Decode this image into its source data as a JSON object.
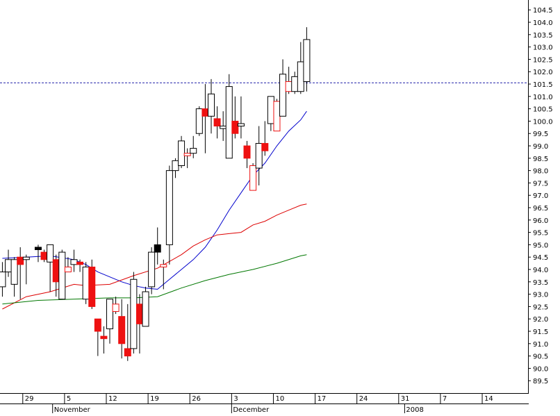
{
  "chart_data": {
    "type": "candlestick",
    "title": "",
    "xlabel": "",
    "ylabel": "",
    "ylim": [
      89.0,
      104.9
    ],
    "y_ticks": [
      89.5,
      90.0,
      90.5,
      91.0,
      91.5,
      92.0,
      92.5,
      93.0,
      93.5,
      94.0,
      94.5,
      95.0,
      95.5,
      96.0,
      96.5,
      97.0,
      97.5,
      98.0,
      98.5,
      99.0,
      99.5,
      100.0,
      100.5,
      101.0,
      101.5,
      102.0,
      102.5,
      103.0,
      103.5,
      104.0,
      104.5
    ],
    "y_tick_labels": [
      "89.5",
      "90.0",
      "90.5",
      "91.0",
      "91.5",
      "92.0",
      "92.5",
      "93.0",
      "93.5",
      "94.0",
      "94.5",
      "95.0",
      "95.5",
      "96.0",
      "96.5",
      "97.0",
      "97.5",
      "98.0",
      "98.5",
      "99.0",
      "99.5",
      "100.0",
      "100.5",
      "101.0",
      "101.5",
      "102.0",
      "102.5",
      "103.0",
      "103.5",
      "104.0",
      "104.5"
    ],
    "grid": false,
    "x_ticks": [
      {
        "label": "29",
        "day": 2
      },
      {
        "label": "5",
        "day": 9
      },
      {
        "label": "12",
        "day": 16
      },
      {
        "label": "19",
        "day": 23
      },
      {
        "label": "26",
        "day": 30
      },
      {
        "label": "3",
        "day": 37
      },
      {
        "label": "10",
        "day": 44
      },
      {
        "label": "17",
        "day": 51
      },
      {
        "label": "24",
        "day": 58
      },
      {
        "label": "31",
        "day": 65
      },
      {
        "label": "7",
        "day": 72
      },
      {
        "label": "14",
        "day": 79
      }
    ],
    "month_labels": [
      {
        "label": "November",
        "day": 7
      },
      {
        "label": "December",
        "day": 37
      },
      {
        "label": "2008",
        "day": 66
      }
    ],
    "x_range": [
      -2.4,
      86.1
    ],
    "reference_line": {
      "value": 101.55,
      "style": "dashed",
      "color": "#1f1fa8"
    },
    "candles": [
      {
        "day": -2,
        "open": 93.3,
        "high": 94.3,
        "low": 92.9,
        "close": 93.9,
        "color": "white"
      },
      {
        "day": -1,
        "open": 93.9,
        "high": 94.8,
        "low": 93.7,
        "close": 94.4,
        "color": "white"
      },
      {
        "day": 0,
        "open": 93.4,
        "high": 94.5,
        "low": 92.9,
        "close": 94.4,
        "color": "white"
      },
      {
        "day": 1,
        "open": 94.5,
        "high": 94.9,
        "low": 92.8,
        "close": 94.2,
        "color": "red"
      },
      {
        "day": 2,
        "open": 94.4,
        "high": 94.6,
        "low": 93.4,
        "close": 94.5,
        "color": "white"
      },
      {
        "day": 4,
        "open": 94.9,
        "high": 95.0,
        "low": 94.3,
        "close": 94.8,
        "color": "black"
      },
      {
        "day": 5,
        "open": 94.7,
        "high": 94.8,
        "low": 94.3,
        "close": 94.4,
        "color": "red"
      },
      {
        "day": 6,
        "open": 94.3,
        "high": 95.0,
        "low": 93.1,
        "close": 95.0,
        "color": "white"
      },
      {
        "day": 7,
        "open": 94.4,
        "high": 94.6,
        "low": 92.9,
        "close": 93.5,
        "color": "red"
      },
      {
        "day": 8,
        "open": 92.8,
        "high": 94.8,
        "low": 92.8,
        "close": 94.7,
        "color": "white"
      },
      {
        "day": 9,
        "open": 94.1,
        "high": 94.5,
        "low": 94.0,
        "close": 93.9,
        "color": "hollow-red"
      },
      {
        "day": 10,
        "open": 94.2,
        "high": 94.8,
        "low": 93.9,
        "close": 94.4,
        "color": "white"
      },
      {
        "day": 11,
        "open": 94.2,
        "high": 94.4,
        "low": 93.9,
        "close": 94.3,
        "color": "red"
      },
      {
        "day": 12,
        "open": 92.8,
        "high": 94.3,
        "low": 92.6,
        "close": 94.1,
        "color": "white"
      },
      {
        "day": 13,
        "open": 94.1,
        "high": 94.4,
        "low": 92.4,
        "close": 92.5,
        "color": "red"
      },
      {
        "day": 14,
        "open": 92.0,
        "high": 92.0,
        "low": 90.5,
        "close": 91.5,
        "color": "red"
      },
      {
        "day": 15,
        "open": 91.3,
        "high": 91.7,
        "low": 90.6,
        "close": 91.2,
        "color": "red"
      },
      {
        "day": 16,
        "open": 91.6,
        "high": 92.8,
        "low": 91.0,
        "close": 92.8,
        "color": "white"
      },
      {
        "day": 17,
        "open": 92.6,
        "high": 92.9,
        "low": 92.2,
        "close": 92.3,
        "color": "hollow-red"
      },
      {
        "day": 18,
        "open": 92.1,
        "high": 92.8,
        "low": 90.4,
        "close": 91.0,
        "color": "red"
      },
      {
        "day": 19,
        "open": 90.8,
        "high": 92.6,
        "low": 90.3,
        "close": 90.5,
        "color": "red"
      },
      {
        "day": 20,
        "open": 90.8,
        "high": 93.9,
        "low": 90.6,
        "close": 93.6,
        "color": "white"
      },
      {
        "day": 21,
        "open": 92.6,
        "high": 93.0,
        "low": 90.6,
        "close": 91.8,
        "color": "red"
      },
      {
        "day": 22,
        "open": 91.7,
        "high": 93.3,
        "low": 91.7,
        "close": 93.1,
        "color": "white"
      },
      {
        "day": 23,
        "open": 93.3,
        "high": 94.9,
        "low": 93.0,
        "close": 94.7,
        "color": "white"
      },
      {
        "day": 24,
        "open": 95.0,
        "high": 95.7,
        "low": 94.2,
        "close": 94.7,
        "color": "black"
      },
      {
        "day": 25,
        "open": 94.2,
        "high": 94.4,
        "low": 93.2,
        "close": 94.1,
        "color": "hollow-red"
      },
      {
        "day": 26,
        "open": 95.0,
        "high": 98.2,
        "low": 94.2,
        "close": 98.0,
        "color": "white"
      },
      {
        "day": 27,
        "open": 98.0,
        "high": 98.5,
        "low": 97.7,
        "close": 98.4,
        "color": "white"
      },
      {
        "day": 28,
        "open": 98.2,
        "high": 99.4,
        "low": 98.1,
        "close": 99.2,
        "color": "white"
      },
      {
        "day": 29,
        "open": 98.7,
        "high": 98.9,
        "low": 98.1,
        "close": 98.6,
        "color": "hollow-red"
      },
      {
        "day": 30,
        "open": 98.7,
        "high": 99.4,
        "low": 98.5,
        "close": 98.9,
        "color": "white"
      },
      {
        "day": 31,
        "open": 99.5,
        "high": 100.6,
        "low": 99.4,
        "close": 100.5,
        "color": "white"
      },
      {
        "day": 32,
        "open": 100.5,
        "high": 101.5,
        "low": 98.7,
        "close": 100.2,
        "color": "red"
      },
      {
        "day": 33,
        "open": 100.2,
        "high": 101.7,
        "low": 99.5,
        "close": 101.1,
        "color": "white"
      },
      {
        "day": 34,
        "open": 100.1,
        "high": 100.6,
        "low": 99.3,
        "close": 99.8,
        "color": "red"
      },
      {
        "day": 35,
        "open": 99.8,
        "high": 100.4,
        "low": 99.2,
        "close": 99.7,
        "color": "white"
      },
      {
        "day": 36,
        "open": 98.5,
        "high": 101.9,
        "low": 98.5,
        "close": 101.4,
        "color": "white"
      },
      {
        "day": 37,
        "open": 100.0,
        "high": 101.0,
        "low": 99.3,
        "close": 99.5,
        "color": "red"
      },
      {
        "day": 38,
        "open": 99.8,
        "high": 101.0,
        "low": 99.3,
        "close": 99.9,
        "color": "white"
      },
      {
        "day": 39,
        "open": 99.0,
        "high": 99.2,
        "low": 98.1,
        "close": 98.5,
        "color": "red"
      },
      {
        "day": 40,
        "open": 98.2,
        "high": 98.3,
        "low": 97.2,
        "close": 97.2,
        "color": "hollow-red"
      },
      {
        "day": 41,
        "open": 98.1,
        "high": 99.8,
        "low": 97.4,
        "close": 99.1,
        "color": "white"
      },
      {
        "day": 42,
        "open": 99.1,
        "high": 100.0,
        "low": 98.6,
        "close": 98.8,
        "color": "red"
      },
      {
        "day": 43,
        "open": 99.9,
        "high": 101.0,
        "low": 99.6,
        "close": 101.0,
        "color": "white"
      },
      {
        "day": 44,
        "open": 100.8,
        "high": 100.9,
        "low": 99.6,
        "close": 99.6,
        "color": "hollow-red"
      },
      {
        "day": 45,
        "open": 100.2,
        "high": 102.5,
        "low": 100.2,
        "close": 101.9,
        "color": "white"
      },
      {
        "day": 46,
        "open": 101.2,
        "high": 102.2,
        "low": 101.1,
        "close": 101.6,
        "color": "hollow-red"
      },
      {
        "day": 47,
        "open": 101.2,
        "high": 102.0,
        "low": 101.1,
        "close": 101.8,
        "color": "white"
      },
      {
        "day": 48,
        "open": 101.2,
        "high": 103.2,
        "low": 101.1,
        "close": 102.4,
        "color": "white"
      },
      {
        "day": 49,
        "open": 101.6,
        "high": 103.8,
        "low": 101.2,
        "close": 103.3,
        "color": "white"
      }
    ],
    "series": [
      {
        "color": "#0000cc",
        "points": [
          [
            -2,
            94.45
          ],
          [
            2,
            94.5
          ],
          [
            6,
            94.55
          ],
          [
            10,
            94.4
          ],
          [
            12,
            94.2
          ],
          [
            14,
            93.9
          ],
          [
            16,
            93.7
          ],
          [
            18,
            93.5
          ],
          [
            20,
            93.35
          ],
          [
            22,
            93.25
          ],
          [
            24,
            93.2
          ],
          [
            26,
            93.6
          ],
          [
            28,
            94.0
          ],
          [
            30,
            94.4
          ],
          [
            32,
            94.9
          ],
          [
            34,
            95.6
          ],
          [
            36,
            96.4
          ],
          [
            38,
            97.1
          ],
          [
            40,
            97.8
          ],
          [
            42,
            98.3
          ],
          [
            44,
            99.0
          ],
          [
            46,
            99.6
          ],
          [
            48,
            100.05
          ],
          [
            49,
            100.4
          ]
        ]
      },
      {
        "color": "#dd0000",
        "points": [
          [
            -2,
            92.4
          ],
          [
            2,
            92.9
          ],
          [
            6,
            93.1
          ],
          [
            10,
            93.4
          ],
          [
            12,
            93.35
          ],
          [
            16,
            93.4
          ],
          [
            20,
            93.75
          ],
          [
            24,
            94.05
          ],
          [
            28,
            94.6
          ],
          [
            30,
            94.95
          ],
          [
            32,
            95.2
          ],
          [
            34,
            95.4
          ],
          [
            36,
            95.45
          ],
          [
            38,
            95.5
          ],
          [
            40,
            95.8
          ],
          [
            42,
            95.95
          ],
          [
            44,
            96.2
          ],
          [
            46,
            96.4
          ],
          [
            48,
            96.6
          ],
          [
            49,
            96.65
          ]
        ]
      },
      {
        "color": "#007700",
        "points": [
          [
            -2,
            92.6
          ],
          [
            4,
            92.75
          ],
          [
            10,
            92.8
          ],
          [
            16,
            92.85
          ],
          [
            20,
            92.85
          ],
          [
            24,
            92.9
          ],
          [
            28,
            93.25
          ],
          [
            32,
            93.55
          ],
          [
            36,
            93.8
          ],
          [
            40,
            94.0
          ],
          [
            44,
            94.25
          ],
          [
            48,
            94.55
          ],
          [
            49,
            94.6
          ]
        ]
      }
    ]
  }
}
